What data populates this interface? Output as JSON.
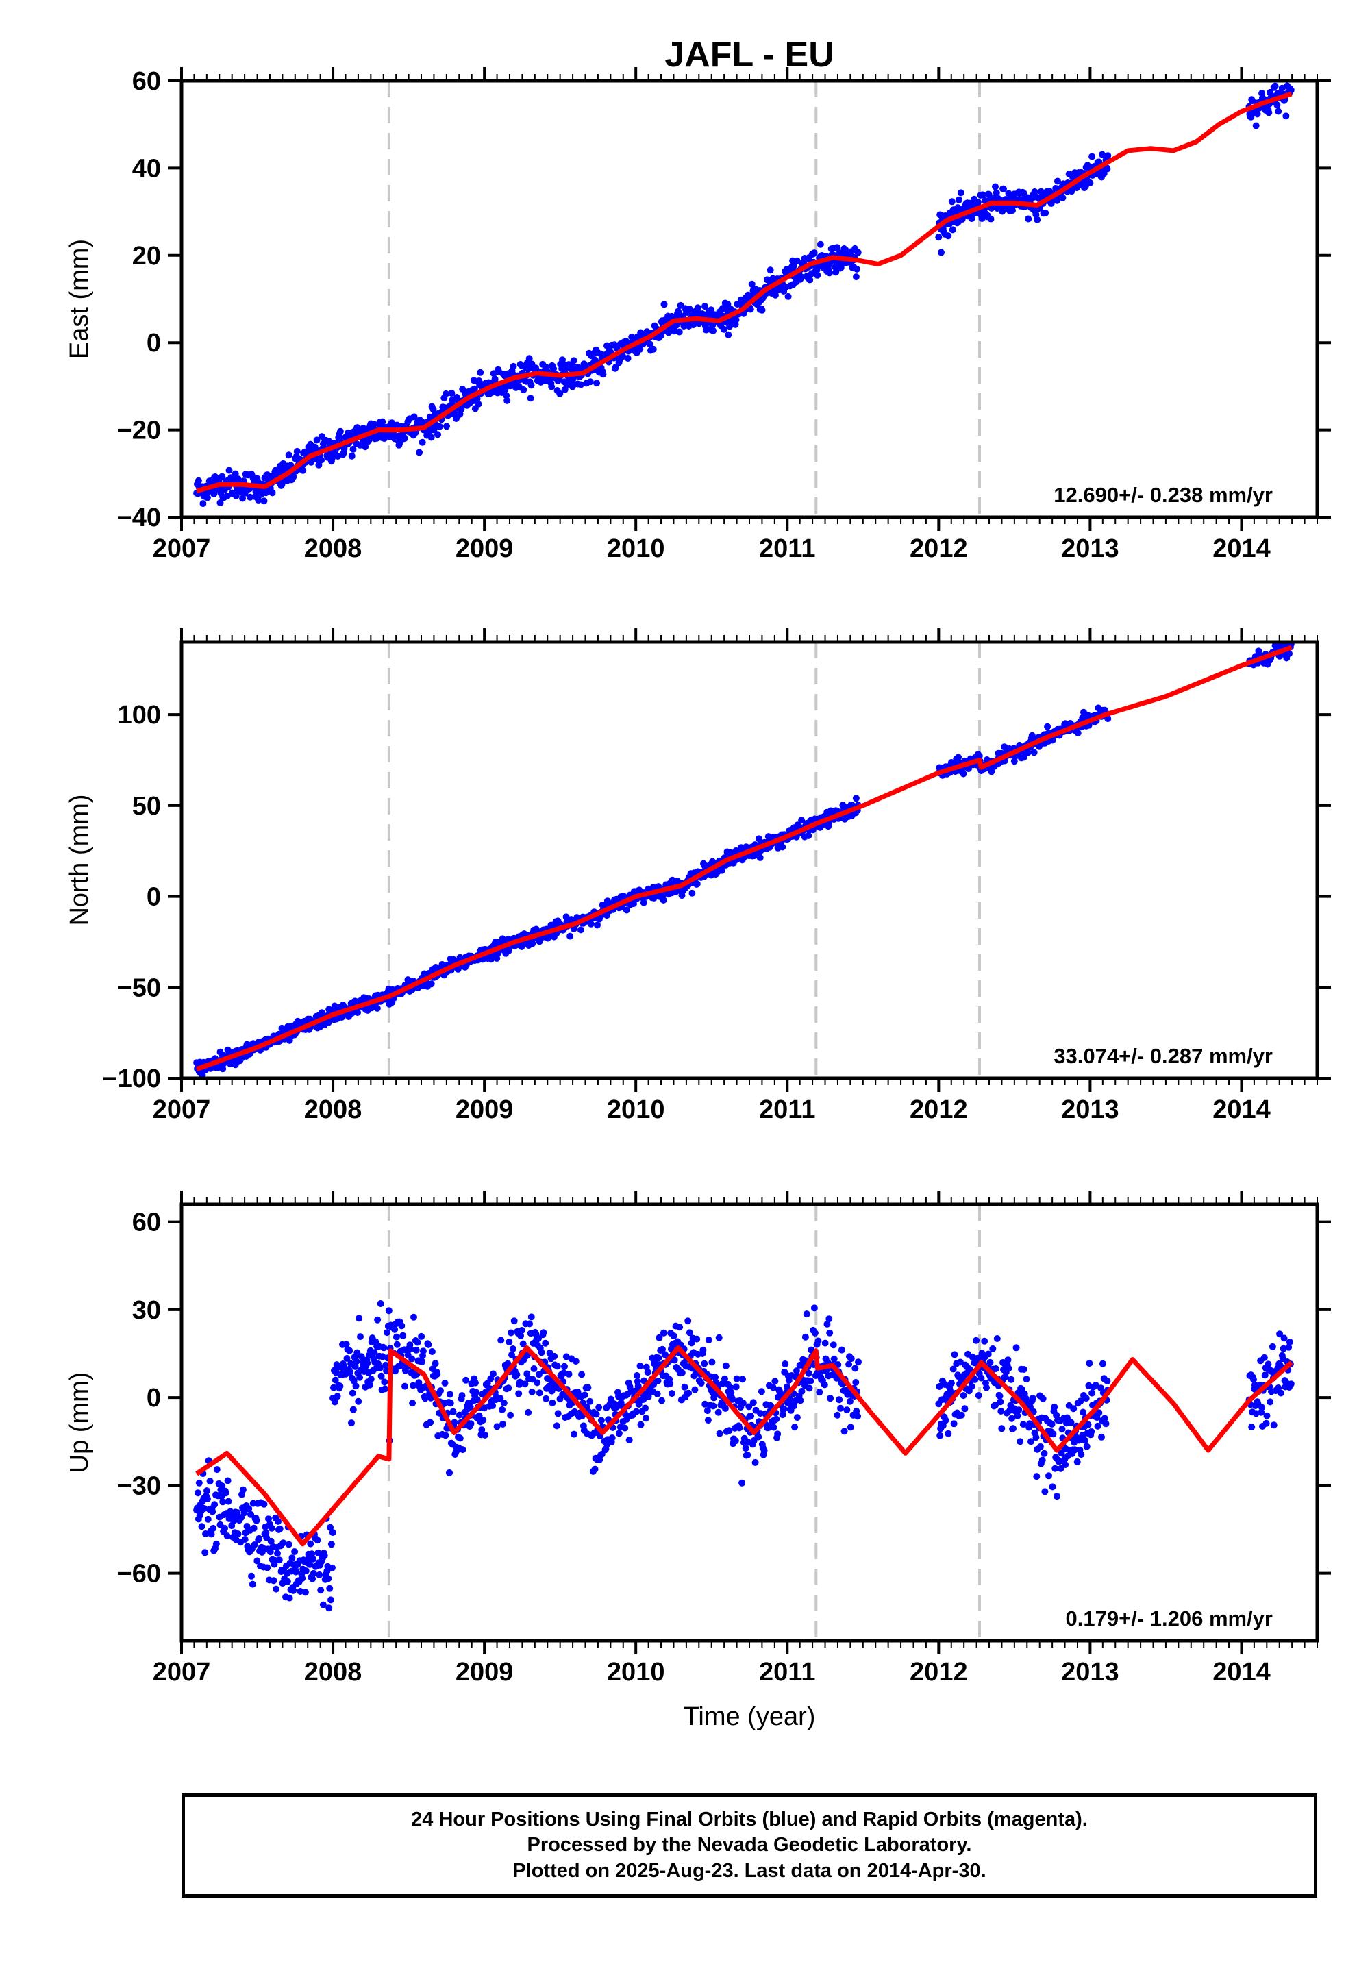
{
  "title": "JAFL - EU",
  "xlabel": "Time (year)",
  "footer": {
    "line1": "24 Hour Positions Using Final Orbits (blue) and Rapid Orbits (magenta).",
    "line2": "Processed by the Nevada Geodetic Laboratory.",
    "line3": "Plotted on 2025-Aug-23. Last data on 2014-Apr-30."
  },
  "colors": {
    "data": "#0000ff",
    "model": "#ff0000",
    "breaks": "#c8c8c8",
    "frame": "#000000"
  },
  "chart_data": [
    {
      "type": "scatter",
      "component": "east",
      "ylabel": "East (mm)",
      "xlim": [
        2007.0,
        2014.5
      ],
      "ylim": [
        -40,
        60
      ],
      "xticks": [
        2007,
        2008,
        2009,
        2010,
        2011,
        2012,
        2013,
        2014
      ],
      "yticks": [
        -40,
        -20,
        0,
        20,
        40,
        60
      ],
      "rate_label": "12.690+/- 0.238 mm/yr",
      "breaks": [
        2008.37,
        2011.19,
        2012.27
      ],
      "data_segments": [
        [
          2007.1,
          2011.47
        ],
        [
          2012.0,
          2013.12
        ],
        [
          2014.05,
          2014.33
        ]
      ],
      "model": {
        "x": [
          2007.1,
          2007.25,
          2007.4,
          2007.55,
          2007.7,
          2007.85,
          2008.0,
          2008.15,
          2008.3,
          2008.45,
          2008.6,
          2008.75,
          2008.9,
          2009.05,
          2009.2,
          2009.35,
          2009.5,
          2009.65,
          2009.8,
          2009.95,
          2010.1,
          2010.25,
          2010.4,
          2010.55,
          2010.7,
          2010.85,
          2011.0,
          2011.15,
          2011.3,
          2011.45,
          2011.6,
          2011.75,
          2011.9,
          2012.05,
          2012.2,
          2012.35,
          2012.5,
          2012.65,
          2012.8,
          2012.95,
          2013.1,
          2013.25,
          2013.4,
          2013.55,
          2013.7,
          2013.85,
          2014.0,
          2014.15,
          2014.33
        ],
        "y": [
          -34.0,
          -32.5,
          -32.5,
          -33.0,
          -30.0,
          -26.0,
          -24.0,
          -22.0,
          -20.0,
          -20.0,
          -19.5,
          -16.0,
          -12.5,
          -10.0,
          -8.0,
          -7.0,
          -7.5,
          -7.0,
          -4.0,
          -1.0,
          1.5,
          5.0,
          5.5,
          5.0,
          7.5,
          12.0,
          15.0,
          18.0,
          19.5,
          19.0,
          18.0,
          20.0,
          24.0,
          28.0,
          30.0,
          32.0,
          32.0,
          31.5,
          34.5,
          38.0,
          41.0,
          44.0,
          44.5,
          44.0,
          46.0,
          50.0,
          53.0,
          55.0,
          57.0
        ]
      }
    },
    {
      "type": "scatter",
      "component": "north",
      "ylabel": "North (mm)",
      "xlim": [
        2007.0,
        2014.5
      ],
      "ylim": [
        -100,
        140
      ],
      "xticks": [
        2007,
        2008,
        2009,
        2010,
        2011,
        2012,
        2013,
        2014
      ],
      "yticks": [
        -100,
        -50,
        0,
        50,
        100
      ],
      "rate_label": "33.074+/- 0.287 mm/yr",
      "breaks": [
        2008.37,
        2011.19,
        2012.27
      ],
      "data_segments": [
        [
          2007.1,
          2011.47
        ],
        [
          2012.0,
          2013.12
        ],
        [
          2014.05,
          2014.33
        ]
      ],
      "model": {
        "x": [
          2007.1,
          2007.5,
          2008.0,
          2008.37,
          2008.8,
          2009.2,
          2009.6,
          2010.0,
          2010.3,
          2010.6,
          2011.0,
          2011.19,
          2011.5,
          2012.0,
          2012.27,
          2012.28,
          2012.7,
          2013.1,
          2013.5,
          2014.0,
          2014.33
        ],
        "y": [
          -95.0,
          -83.0,
          -65.0,
          -55.0,
          -38.0,
          -25.0,
          -15.0,
          0.0,
          6.0,
          20.0,
          33.0,
          40.0,
          50.0,
          68.0,
          75.0,
          71.0,
          87.0,
          100.0,
          110.0,
          127.0,
          137.0
        ]
      }
    },
    {
      "type": "scatter",
      "component": "up",
      "ylabel": "Up (mm)",
      "xlim": [
        2007.0,
        2014.5
      ],
      "ylim": [
        -83,
        66
      ],
      "xticks": [
        2007,
        2008,
        2009,
        2010,
        2011,
        2012,
        2013,
        2014
      ],
      "yticks": [
        -60,
        -30,
        0,
        30,
        60
      ],
      "rate_label": "0.179+/- 1.206 mm/yr",
      "breaks": [
        2008.37,
        2011.19,
        2012.27
      ],
      "data_segments": [
        [
          2007.1,
          2008.0
        ],
        [
          2008.0,
          2011.47
        ],
        [
          2012.0,
          2013.12
        ],
        [
          2014.05,
          2014.33
        ]
      ],
      "model_desc": "annual sinusoid, amplitude ~15 mm, with offsets at breaks",
      "model": {
        "x": [
          2007.1,
          2007.3,
          2007.55,
          2007.8,
          2008.05,
          2008.3,
          2008.37,
          2008.38,
          2008.6,
          2008.8,
          2009.05,
          2009.28,
          2009.55,
          2009.78,
          2010.05,
          2010.28,
          2010.55,
          2010.78,
          2011.05,
          2011.19,
          2011.2,
          2011.3,
          2011.55,
          2011.78,
          2012.05,
          2012.27,
          2012.28,
          2012.55,
          2012.78,
          2013.05,
          2013.28,
          2013.55,
          2013.78,
          2014.05,
          2014.33
        ],
        "y": [
          -26.0,
          -19.0,
          -33.0,
          -50.0,
          -35.0,
          -20.0,
          -21.0,
          16.0,
          8.0,
          -12.0,
          2.0,
          17.0,
          2.0,
          -12.0,
          3.0,
          17.0,
          2.0,
          -12.0,
          4.0,
          16.0,
          10.0,
          11.0,
          -5.0,
          -19.0,
          -3.0,
          11.0,
          12.0,
          -2.0,
          -18.0,
          -3.0,
          13.0,
          -2.0,
          -18.0,
          -1.0,
          12.0
        ]
      }
    }
  ]
}
